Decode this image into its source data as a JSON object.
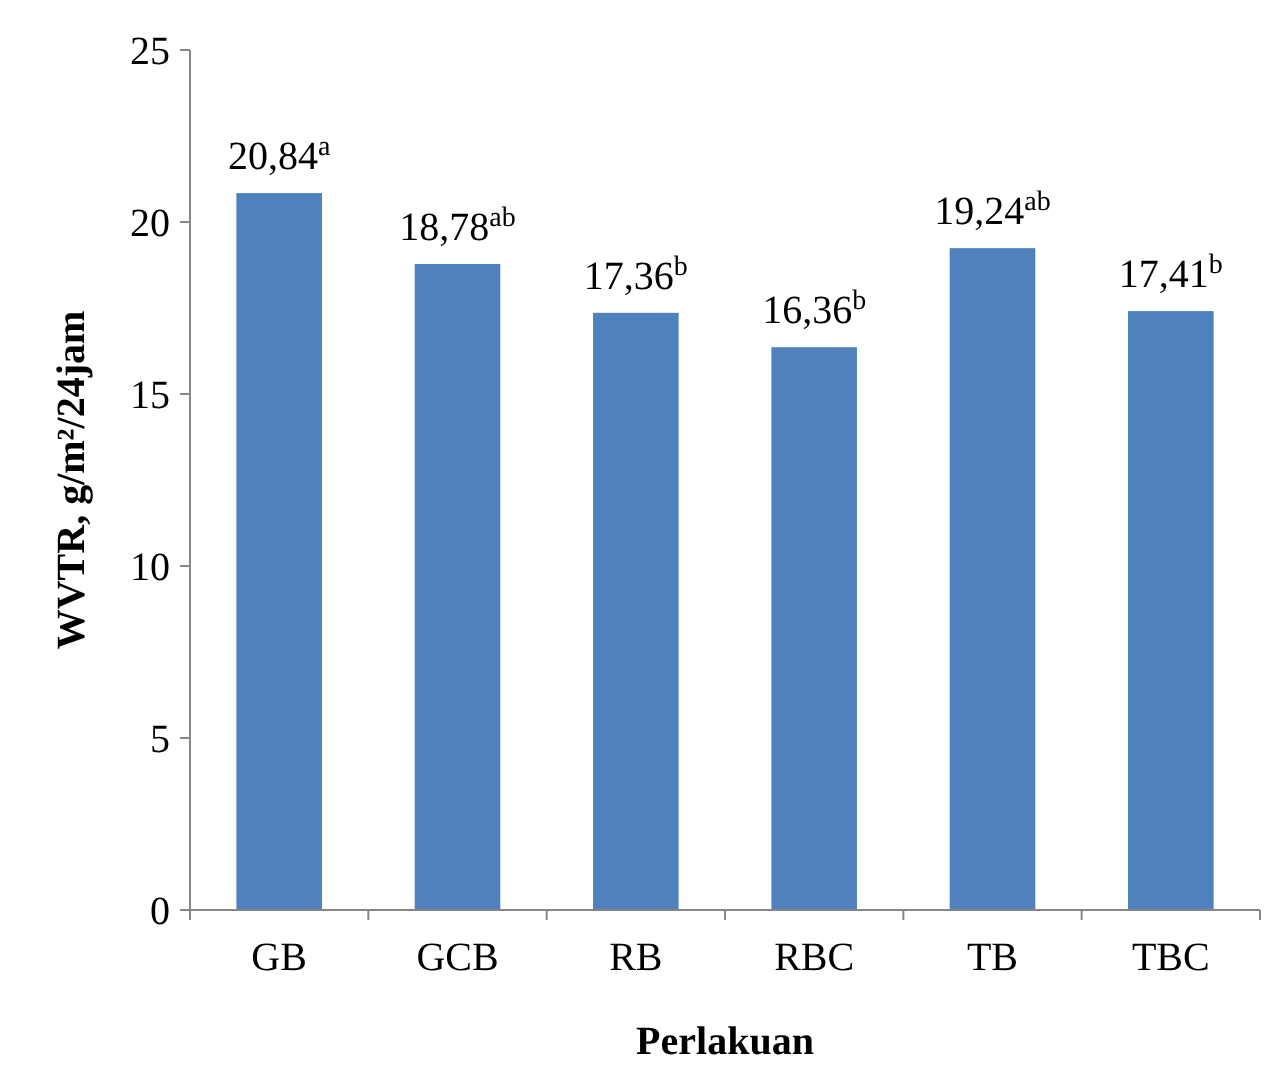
{
  "chart_data": {
    "type": "bar",
    "xlabel": "Perlakuan",
    "ylabel": "WVTR, g/m²/24jam",
    "categories": [
      "GB",
      "GCB",
      "RB",
      "RBC",
      "TB",
      "TBC"
    ],
    "values": [
      20.84,
      18.78,
      17.36,
      16.36,
      19.24,
      17.41
    ],
    "value_labels": [
      "20,84$^{a}$",
      "18,78$^{ab}$",
      "17,36$^{b}$",
      "16,36$^{b}$",
      "19,24$^{ab}$",
      "17,41$^{b}$"
    ],
    "color": "#4f81bd",
    "ylim": [
      0,
      25
    ],
    "yticks": [
      0,
      5,
      10,
      15,
      20,
      25
    ]
  }
}
